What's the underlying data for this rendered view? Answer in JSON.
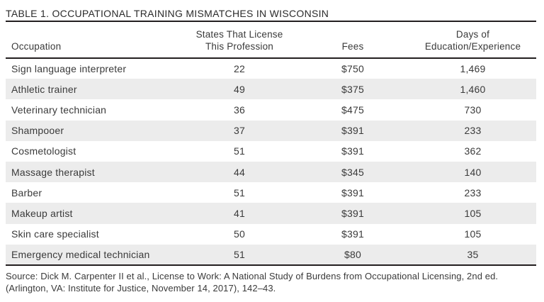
{
  "title": "TABLE 1. OCCUPATIONAL TRAINING MISMATCHES IN WISCONSIN",
  "table": {
    "columns": {
      "occupation": "Occupation",
      "states": "States That License\nThis Profession",
      "fees": "Fees",
      "days": "Days of\nEducation/Experience"
    },
    "rows": [
      {
        "occupation": "Sign language interpreter",
        "states": "22",
        "fees": "$750",
        "days": "1,469"
      },
      {
        "occupation": "Athletic trainer",
        "states": "49",
        "fees": "$375",
        "days": "1,460"
      },
      {
        "occupation": "Veterinary technician",
        "states": "36",
        "fees": "$475",
        "days": "730"
      },
      {
        "occupation": "Shampooer",
        "states": "37",
        "fees": "$391",
        "days": "233"
      },
      {
        "occupation": "Cosmetologist",
        "states": "51",
        "fees": "$391",
        "days": "362"
      },
      {
        "occupation": "Massage therapist",
        "states": "44",
        "fees": "$345",
        "days": "140"
      },
      {
        "occupation": "Barber",
        "states": "51",
        "fees": "$391",
        "days": "233"
      },
      {
        "occupation": "Makeup artist",
        "states": "41",
        "fees": "$391",
        "days": "105"
      },
      {
        "occupation": "Skin care specialist",
        "states": "50",
        "fees": "$391",
        "days": "105"
      },
      {
        "occupation": "Emergency medical technician",
        "states": "51",
        "fees": "$80",
        "days": "35"
      }
    ]
  },
  "source": "Source: Dick M. Carpenter II et al., License to Work: A National Study of Burdens from Occupational Licensing, 2nd ed.\n(Arlington, VA: Institute for Justice, November 14, 2017), 142–43.",
  "colors": {
    "stripe": "#ececec",
    "rule": "#231f20",
    "text": "#3a3a3a",
    "title": "#2b2b2b"
  }
}
